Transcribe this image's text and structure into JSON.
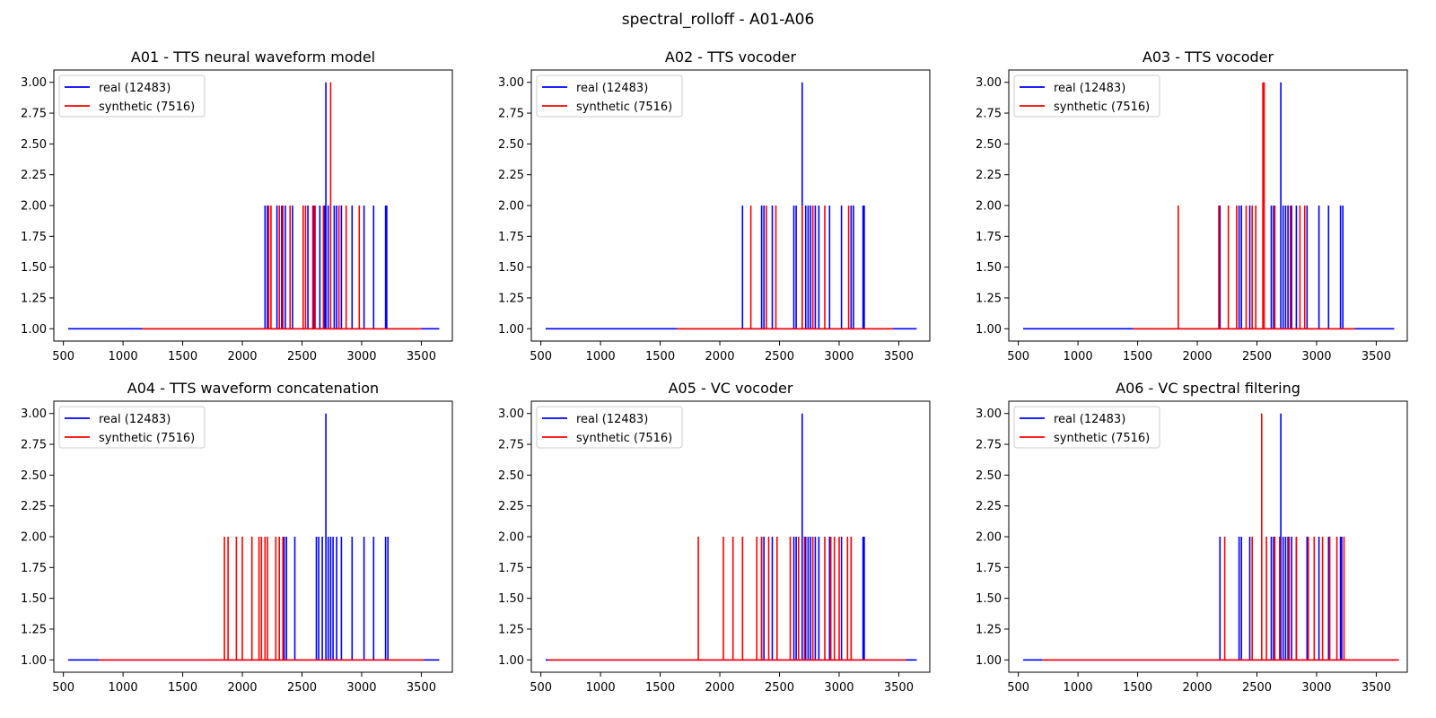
{
  "figure": {
    "title": "spectral_rolloff - A01-A06"
  },
  "colors": {
    "real": "#0000ff",
    "synthetic": "#ff0000",
    "axes": "#000000",
    "legend_border": "#cccccc"
  },
  "chart_data": [
    {
      "type": "line",
      "title": "A01 - TTS neural waveform model",
      "xlim": [
        420,
        3760
      ],
      "ylim": [
        0.9,
        3.1
      ],
      "xticks": [
        500,
        1000,
        1500,
        2000,
        2500,
        3000,
        3500
      ],
      "yticks": [
        1.0,
        1.25,
        1.5,
        1.75,
        2.0,
        2.25,
        2.5,
        2.75,
        3.0
      ],
      "legend": "top-left",
      "grid": false,
      "series": [
        {
          "name": "real (12483)",
          "color": "#0000ff",
          "range": [
            540,
            3650
          ],
          "spikes": [
            [
              2190,
              2
            ],
            [
              2210,
              2
            ],
            [
              2290,
              2
            ],
            [
              2330,
              2
            ],
            [
              2360,
              2
            ],
            [
              2420,
              2
            ],
            [
              2550,
              2
            ],
            [
              2600,
              2
            ],
            [
              2650,
              2
            ],
            [
              2690,
              2
            ],
            [
              2700,
              3
            ],
            [
              2720,
              2
            ],
            [
              2770,
              2
            ],
            [
              2790,
              2
            ],
            [
              2830,
              2
            ],
            [
              2920,
              2
            ],
            [
              3020,
              2
            ],
            [
              3100,
              2
            ],
            [
              3200,
              2
            ],
            [
              3210,
              2
            ]
          ]
        },
        {
          "name": "synthetic (7516)",
          "color": "#ff0000",
          "range": [
            1160,
            3500
          ],
          "spikes": [
            [
              2220,
              2
            ],
            [
              2240,
              2
            ],
            [
              2310,
              2
            ],
            [
              2340,
              2
            ],
            [
              2400,
              2
            ],
            [
              2510,
              2
            ],
            [
              2530,
              2
            ],
            [
              2590,
              2
            ],
            [
              2610,
              2
            ],
            [
              2680,
              2
            ],
            [
              2740,
              3
            ],
            [
              2810,
              2
            ],
            [
              2870,
              2
            ],
            [
              2980,
              2
            ]
          ]
        }
      ]
    },
    {
      "type": "line",
      "title": "A02 - TTS vocoder",
      "xlim": [
        420,
        3760
      ],
      "ylim": [
        0.9,
        3.1
      ],
      "xticks": [
        500,
        1000,
        1500,
        2000,
        2500,
        3000,
        3500
      ],
      "yticks": [
        1.0,
        1.25,
        1.5,
        1.75,
        2.0,
        2.25,
        2.5,
        2.75,
        3.0
      ],
      "legend": "top-left",
      "grid": false,
      "series": [
        {
          "name": "real (12483)",
          "color": "#0000ff",
          "range": [
            540,
            3650
          ],
          "spikes": [
            [
              2190,
              2
            ],
            [
              2350,
              2
            ],
            [
              2370,
              2
            ],
            [
              2440,
              2
            ],
            [
              2620,
              2
            ],
            [
              2640,
              2
            ],
            [
              2690,
              3
            ],
            [
              2720,
              2
            ],
            [
              2740,
              2
            ],
            [
              2760,
              2
            ],
            [
              2800,
              2
            ],
            [
              2830,
              2
            ],
            [
              2920,
              2
            ],
            [
              3020,
              2
            ],
            [
              3100,
              2
            ],
            [
              3120,
              2
            ],
            [
              3200,
              2
            ],
            [
              3210,
              2
            ]
          ]
        },
        {
          "name": "synthetic (7516)",
          "color": "#ff0000",
          "range": [
            1640,
            3450
          ],
          "spikes": [
            [
              2260,
              2
            ],
            [
              2390,
              2
            ],
            [
              2470,
              2
            ],
            [
              2690,
              2
            ],
            [
              2780,
              2
            ],
            [
              2880,
              2
            ],
            [
              3080,
              2
            ]
          ]
        }
      ]
    },
    {
      "type": "line",
      "title": "A03 - TTS vocoder",
      "xlim": [
        420,
        3760
      ],
      "ylim": [
        0.9,
        3.1
      ],
      "xticks": [
        500,
        1000,
        1500,
        2000,
        2500,
        3000,
        3500
      ],
      "yticks": [
        1.0,
        1.25,
        1.5,
        1.75,
        2.0,
        2.25,
        2.5,
        2.75,
        3.0
      ],
      "legend": "top-left",
      "grid": false,
      "series": [
        {
          "name": "real (12483)",
          "color": "#0000ff",
          "range": [
            540,
            3650
          ],
          "spikes": [
            [
              2190,
              2
            ],
            [
              2350,
              2
            ],
            [
              2370,
              2
            ],
            [
              2440,
              2
            ],
            [
              2620,
              2
            ],
            [
              2640,
              2
            ],
            [
              2700,
              3
            ],
            [
              2720,
              2
            ],
            [
              2740,
              2
            ],
            [
              2760,
              2
            ],
            [
              2790,
              2
            ],
            [
              2830,
              2
            ],
            [
              2920,
              2
            ],
            [
              3020,
              2
            ],
            [
              3100,
              2
            ],
            [
              3200,
              2
            ],
            [
              3220,
              2
            ]
          ]
        },
        {
          "name": "synthetic (7516)",
          "color": "#ff0000",
          "range": [
            1460,
            3320
          ],
          "spikes": [
            [
              1840,
              2
            ],
            [
              2180,
              2
            ],
            [
              2260,
              2
            ],
            [
              2330,
              2
            ],
            [
              2410,
              2
            ],
            [
              2460,
              2
            ],
            [
              2490,
              2
            ],
            [
              2550,
              3
            ],
            [
              2560,
              3
            ],
            [
              2650,
              2
            ],
            [
              2780,
              2
            ],
            [
              2860,
              2
            ],
            [
              2900,
              2
            ]
          ]
        }
      ]
    },
    {
      "type": "line",
      "title": "A04 - TTS waveform concatenation",
      "xlim": [
        420,
        3760
      ],
      "ylim": [
        0.9,
        3.1
      ],
      "xticks": [
        500,
        1000,
        1500,
        2000,
        2500,
        3000,
        3500
      ],
      "yticks": [
        1.0,
        1.25,
        1.5,
        1.75,
        2.0,
        2.25,
        2.5,
        2.75,
        3.0
      ],
      "legend": "top-left",
      "grid": false,
      "series": [
        {
          "name": "real (12483)",
          "color": "#0000ff",
          "range": [
            540,
            3650
          ],
          "spikes": [
            [
              2350,
              2
            ],
            [
              2370,
              2
            ],
            [
              2440,
              2
            ],
            [
              2620,
              2
            ],
            [
              2640,
              2
            ],
            [
              2670,
              2
            ],
            [
              2700,
              3
            ],
            [
              2720,
              2
            ],
            [
              2740,
              2
            ],
            [
              2760,
              2
            ],
            [
              2790,
              2
            ],
            [
              2830,
              2
            ],
            [
              2920,
              2
            ],
            [
              3020,
              2
            ],
            [
              3100,
              2
            ],
            [
              3200,
              2
            ],
            [
              3220,
              2
            ]
          ]
        },
        {
          "name": "synthetic (7516)",
          "color": "#ff0000",
          "range": [
            800,
            3520
          ],
          "spikes": [
            [
              1850,
              2
            ],
            [
              1880,
              2
            ],
            [
              1950,
              2
            ],
            [
              2000,
              2
            ],
            [
              2080,
              2
            ],
            [
              2140,
              2
            ],
            [
              2160,
              2
            ],
            [
              2190,
              2
            ],
            [
              2210,
              2
            ],
            [
              2280,
              2
            ],
            [
              2310,
              2
            ],
            [
              2340,
              2
            ]
          ]
        }
      ]
    },
    {
      "type": "line",
      "title": "A05 - VC vocoder",
      "xlim": [
        420,
        3760
      ],
      "ylim": [
        0.9,
        3.1
      ],
      "xticks": [
        500,
        1000,
        1500,
        2000,
        2500,
        3000,
        3500
      ],
      "yticks": [
        1.0,
        1.25,
        1.5,
        1.75,
        2.0,
        2.25,
        2.5,
        2.75,
        3.0
      ],
      "legend": "top-left",
      "grid": false,
      "series": [
        {
          "name": "real (12483)",
          "color": "#0000ff",
          "range": [
            540,
            3650
          ],
          "spikes": [
            [
              2190,
              2
            ],
            [
              2350,
              2
            ],
            [
              2370,
              2
            ],
            [
              2440,
              2
            ],
            [
              2620,
              2
            ],
            [
              2640,
              2
            ],
            [
              2690,
              3
            ],
            [
              2720,
              2
            ],
            [
              2740,
              2
            ],
            [
              2760,
              2
            ],
            [
              2800,
              2
            ],
            [
              2830,
              2
            ],
            [
              2920,
              2
            ],
            [
              3020,
              2
            ],
            [
              3100,
              2
            ],
            [
              3200,
              2
            ],
            [
              3210,
              2
            ]
          ]
        },
        {
          "name": "synthetic (7516)",
          "color": "#ff0000",
          "range": [
            560,
            3560
          ],
          "spikes": [
            [
              1820,
              2
            ],
            [
              2030,
              2
            ],
            [
              2110,
              2
            ],
            [
              2190,
              2
            ],
            [
              2310,
              2
            ],
            [
              2350,
              2
            ],
            [
              2410,
              2
            ],
            [
              2480,
              2
            ],
            [
              2590,
              2
            ],
            [
              2660,
              2
            ],
            [
              2710,
              2
            ],
            [
              2780,
              2
            ],
            [
              2880,
              2
            ],
            [
              2930,
              2
            ],
            [
              2960,
              2
            ],
            [
              3000,
              2
            ],
            [
              3070,
              2
            ],
            [
              3100,
              2
            ]
          ]
        }
      ]
    },
    {
      "type": "line",
      "title": "A06 - VC spectral filtering",
      "xlim": [
        420,
        3760
      ],
      "ylim": [
        0.9,
        3.1
      ],
      "xticks": [
        500,
        1000,
        1500,
        2000,
        2500,
        3000,
        3500
      ],
      "yticks": [
        1.0,
        1.25,
        1.5,
        1.75,
        2.0,
        2.25,
        2.5,
        2.75,
        3.0
      ],
      "legend": "top-left",
      "grid": false,
      "series": [
        {
          "name": "real (12483)",
          "color": "#0000ff",
          "range": [
            540,
            3650
          ],
          "spikes": [
            [
              2190,
              2
            ],
            [
              2350,
              2
            ],
            [
              2370,
              2
            ],
            [
              2440,
              2
            ],
            [
              2620,
              2
            ],
            [
              2640,
              2
            ],
            [
              2700,
              3
            ],
            [
              2720,
              2
            ],
            [
              2740,
              2
            ],
            [
              2760,
              2
            ],
            [
              2790,
              2
            ],
            [
              2830,
              2
            ],
            [
              2920,
              2
            ],
            [
              3020,
              2
            ],
            [
              3100,
              2
            ],
            [
              3200,
              2
            ],
            [
              3210,
              2
            ]
          ]
        },
        {
          "name": "synthetic (7516)",
          "color": "#ff0000",
          "range": [
            700,
            3690
          ],
          "spikes": [
            [
              2230,
              2
            ],
            [
              2460,
              2
            ],
            [
              2540,
              3
            ],
            [
              2580,
              2
            ],
            [
              2650,
              2
            ],
            [
              2690,
              2
            ],
            [
              2770,
              2
            ],
            [
              2830,
              2
            ],
            [
              2930,
              2
            ],
            [
              2980,
              2
            ],
            [
              3050,
              2
            ],
            [
              3110,
              2
            ],
            [
              3170,
              2
            ],
            [
              3230,
              2
            ]
          ]
        }
      ]
    }
  ]
}
